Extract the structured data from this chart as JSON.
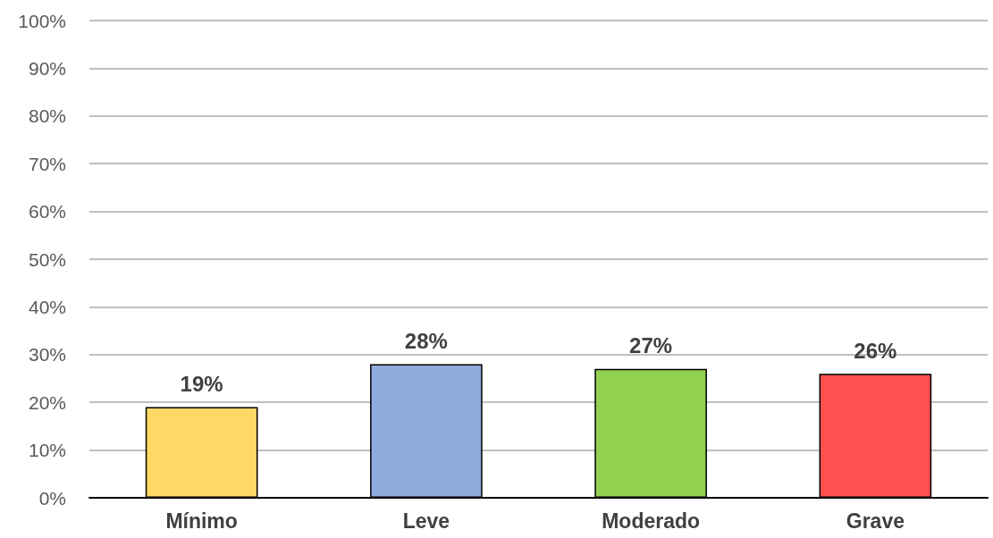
{
  "chart_data": {
    "type": "bar",
    "categories": [
      "Mínimo",
      "Leve",
      "Moderado",
      "Grave"
    ],
    "values": [
      19,
      28,
      27,
      26
    ],
    "colors": [
      "#ffd966",
      "#8faadc",
      "#92d050",
      "#ff5050"
    ],
    "value_labels": [
      "19%",
      "28%",
      "27%",
      "26%"
    ],
    "ylim": [
      0,
      100
    ],
    "yticks": [
      {
        "value": 0,
        "label": "0%"
      },
      {
        "value": 10,
        "label": "10%"
      },
      {
        "value": 20,
        "label": "20%"
      },
      {
        "value": 30,
        "label": "30%"
      },
      {
        "value": 40,
        "label": "40%"
      },
      {
        "value": 50,
        "label": "50%"
      },
      {
        "value": 60,
        "label": "60%"
      },
      {
        "value": 70,
        "label": "70%"
      },
      {
        "value": 80,
        "label": "80%"
      },
      {
        "value": 90,
        "label": "90%"
      },
      {
        "value": 100,
        "label": "100%"
      }
    ],
    "grid": "y"
  }
}
